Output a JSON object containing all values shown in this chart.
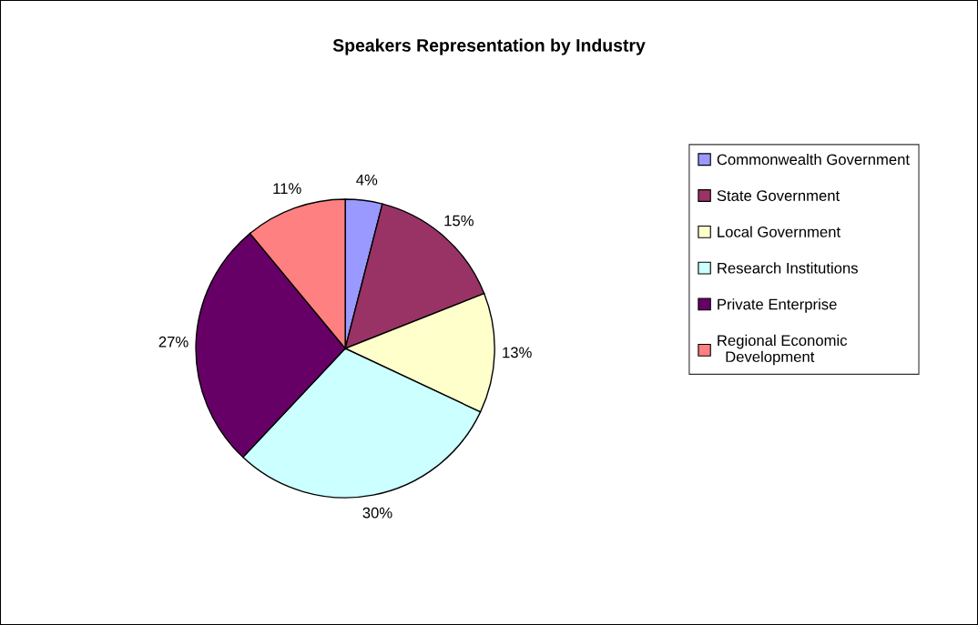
{
  "chart_data": {
    "type": "pie",
    "title": "Speakers Representation by Industry",
    "categories": [
      "Commonwealth Government",
      "State Government",
      "Local Government",
      "Research Institutions",
      "Private Enterprise",
      "Regional Economic Development"
    ],
    "values": [
      4,
      15,
      13,
      30,
      27,
      11
    ],
    "colors": [
      "#9999ff",
      "#993366",
      "#ffffcc",
      "#ccffff",
      "#660066",
      "#ff8080"
    ],
    "value_labels": [
      "4%",
      "15%",
      "13%",
      "30%",
      "27%",
      "11%"
    ],
    "legend": "right"
  }
}
